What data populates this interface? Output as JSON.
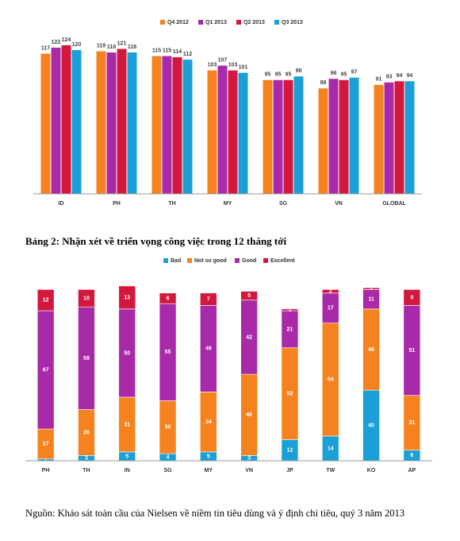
{
  "caption": "Bảng 2: Nhận xét về triển vọng công việc trong 12 tháng tới",
  "source": "Nguồn: Khảo sát toàn cầu của Nielsen về niềm tin tiêu dùng và ý định chi tiêu, quý 3 năm 2013",
  "chart_data": [
    {
      "type": "bar",
      "categories": [
        "ID",
        "PH",
        "TH",
        "MY",
        "SG",
        "VN",
        "GLOBAL"
      ],
      "series": [
        {
          "name": "Q4 2012",
          "color": "#f5821f",
          "values": [
            117,
            119,
            115,
            103,
            95,
            88,
            91
          ]
        },
        {
          "name": "Q1 2013",
          "color": "#a92aa8",
          "values": [
            122,
            118,
            115,
            107,
            95,
            96,
            93
          ]
        },
        {
          "name": "Q2 2013",
          "color": "#d3173d",
          "values": [
            124,
            121,
            114,
            103,
            95,
            95,
            94
          ]
        },
        {
          "name": "Q3 2013",
          "color": "#1a9fd6",
          "values": [
            120,
            118,
            112,
            101,
            98,
            97,
            94
          ]
        }
      ],
      "legend": "top"
    },
    {
      "type": "stacked_bar",
      "categories": [
        "PH",
        "TH",
        "IN",
        "SG",
        "MY",
        "VN",
        "JP",
        "TW",
        "KO",
        "AP"
      ],
      "series": [
        {
          "name": "Bad",
          "color": "#1a9fd6",
          "values": [
            1,
            3,
            5,
            4,
            5,
            3,
            12,
            14,
            40,
            6
          ]
        },
        {
          "name": "Not so good",
          "color": "#f5821f",
          "values": [
            17,
            26,
            31,
            30,
            34,
            46,
            52,
            64,
            46,
            31
          ]
        },
        {
          "name": "Good",
          "color": "#a92aa8",
          "values": [
            67,
            58,
            50,
            55,
            49,
            42,
            21,
            17,
            11,
            51
          ]
        },
        {
          "name": "Excellent",
          "color": "#d3173d",
          "values": [
            12,
            10,
            13,
            6,
            7,
            5,
            1,
            2,
            1,
            9
          ]
        }
      ],
      "legend": "top"
    }
  ]
}
